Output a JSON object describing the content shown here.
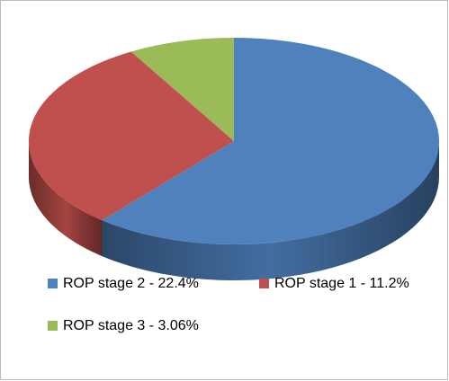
{
  "chart_data": {
    "type": "pie",
    "categories": [
      "ROP stage 2 - 22.4%",
      "ROP stage 1 - 11.2%",
      "ROP stage 3 - 3.06%"
    ],
    "values": [
      22.4,
      11.2,
      3.06
    ],
    "colors": [
      "#4f81bd",
      "#c0504d",
      "#9bbb59"
    ],
    "legend": "bottom"
  }
}
